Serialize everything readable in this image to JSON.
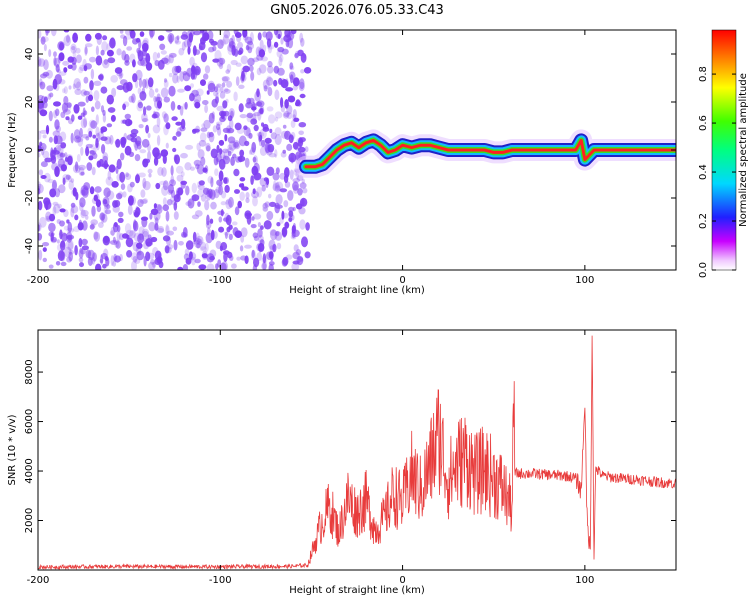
{
  "title": "GN05.2026.076.05.33.C43",
  "colors": {
    "snr_line": "#e83c3c",
    "noise": "#7f3ff2",
    "ridge_core": "#ff2020",
    "ridge_mid": "#39e020",
    "ridge_edge": "#14b8ff",
    "ridge_outer": "#2020c8"
  },
  "colorbar": {
    "label": "Normalized spectral amplitude",
    "ticks": [
      "0.0",
      "0.2",
      "0.4",
      "0.6",
      "0.8"
    ],
    "tick_values": [
      0.0,
      0.2,
      0.4,
      0.6,
      0.8
    ],
    "range": [
      0,
      0.98
    ],
    "colormap": "hsv-rainbow (magenta→blue→cyan→green→yellow→red)"
  },
  "chart_data": [
    {
      "type": "heatmap",
      "name": "spectrogram",
      "xlabel": "Height of straight line (km)",
      "ylabel": "Frequency (Hz)",
      "xlim": [
        -200,
        150
      ],
      "ylim": [
        -50,
        50
      ],
      "xticks": [
        -200,
        -100,
        0,
        100
      ],
      "xtick_labels": [
        "-200",
        "-100",
        "0",
        "100"
      ],
      "yticks": [
        -40,
        -20,
        0,
        20,
        40
      ],
      "ytick_labels": [
        "-40",
        "-20",
        "0",
        "20",
        "40"
      ],
      "noise_region_x": [
        -200,
        -52
      ],
      "ridge": {
        "x": [
          -53,
          -48,
          -44,
          -40,
          -36,
          -32,
          -28,
          -24,
          -20,
          -16,
          -12,
          -8,
          -4,
          0,
          5,
          10,
          15,
          20,
          25,
          30,
          35,
          40,
          45,
          50,
          55,
          60,
          65,
          70,
          75,
          80,
          85,
          90,
          95,
          98,
          100,
          105,
          110,
          120,
          130,
          140,
          150
        ],
        "y": [
          -7,
          -7,
          -6,
          -3,
          0,
          2,
          3,
          1,
          3,
          4,
          2,
          -1,
          0,
          2,
          1,
          2,
          2,
          1,
          0,
          0,
          0,
          0,
          0,
          -1,
          -1,
          0,
          0,
          0,
          0,
          0,
          0,
          0,
          0,
          4,
          -4,
          0,
          0,
          0,
          0,
          0,
          0
        ]
      }
    },
    {
      "type": "line",
      "name": "snr",
      "xlabel": "Height of straight line (km)",
      "ylabel": "SNR (10 * v/v)",
      "xlim": [
        -200,
        150
      ],
      "ylim": [
        0,
        9700
      ],
      "xticks": [
        -200,
        -100,
        0,
        100
      ],
      "xtick_labels": [
        "-200",
        "-100",
        "0",
        "100"
      ],
      "yticks": [
        2000,
        4000,
        6000,
        8000
      ],
      "ytick_labels": [
        "2000",
        "4000",
        "6000",
        "8000"
      ],
      "series": [
        {
          "x": [
            -200,
            -150,
            -100,
            -60,
            -52,
            -45,
            -40,
            -35,
            -30,
            -25,
            -20,
            -15,
            -10,
            -5,
            0,
            5,
            10,
            15,
            20,
            25,
            30,
            35,
            40,
            45,
            50,
            55,
            60,
            61,
            62,
            70,
            80,
            90,
            95,
            98,
            100,
            101,
            102,
            103,
            104,
            105,
            106,
            110,
            120,
            130,
            140,
            150
          ],
          "y": [
            120,
            140,
            130,
            150,
            200,
            1800,
            2600,
            1500,
            2900,
            2300,
            2800,
            1600,
            2100,
            3100,
            2700,
            3900,
            3200,
            4200,
            5500,
            3600,
            4300,
            4600,
            3800,
            4100,
            3700,
            3300,
            2500,
            6200,
            3900,
            3900,
            3850,
            3800,
            3700,
            3200,
            6900,
            2500,
            1400,
            700,
            9700,
            500,
            4100,
            3800,
            3700,
            3650,
            3550,
            3500
          ]
        }
      ]
    }
  ]
}
